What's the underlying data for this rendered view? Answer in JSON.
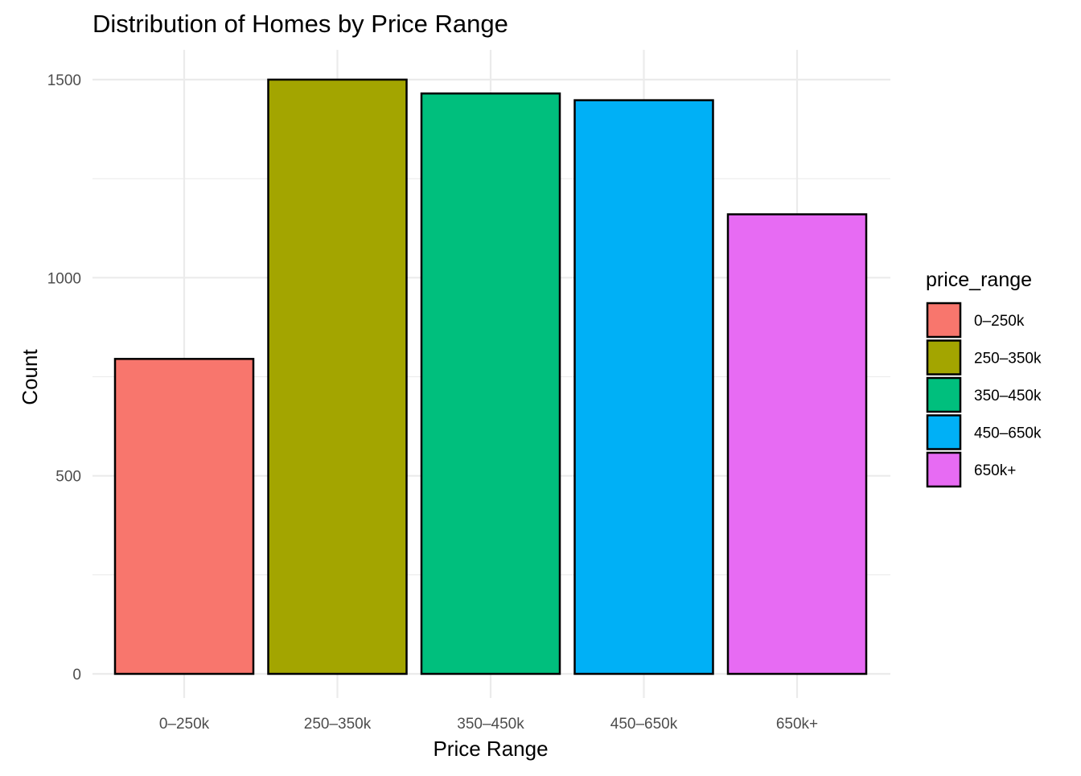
{
  "chart_data": {
    "type": "bar",
    "title": "Distribution of Homes by Price Range",
    "xlabel": "Price Range",
    "ylabel": "Count",
    "categories": [
      "0–250k",
      "250–350k",
      "350–450k",
      "450–650k",
      "650k+"
    ],
    "values": [
      795,
      1500,
      1465,
      1448,
      1160
    ],
    "colors": [
      "#F8766D",
      "#A3A500",
      "#00BF7D",
      "#00B0F6",
      "#E76BF3"
    ],
    "ylim": [
      0,
      1500
    ],
    "yticks": [
      0,
      500,
      1000,
      1500
    ],
    "grid": true,
    "legend": {
      "title": "price_range",
      "position": "right",
      "entries": [
        "0–250k",
        "250–350k",
        "350–450k",
        "450–650k",
        "650k+"
      ]
    }
  }
}
